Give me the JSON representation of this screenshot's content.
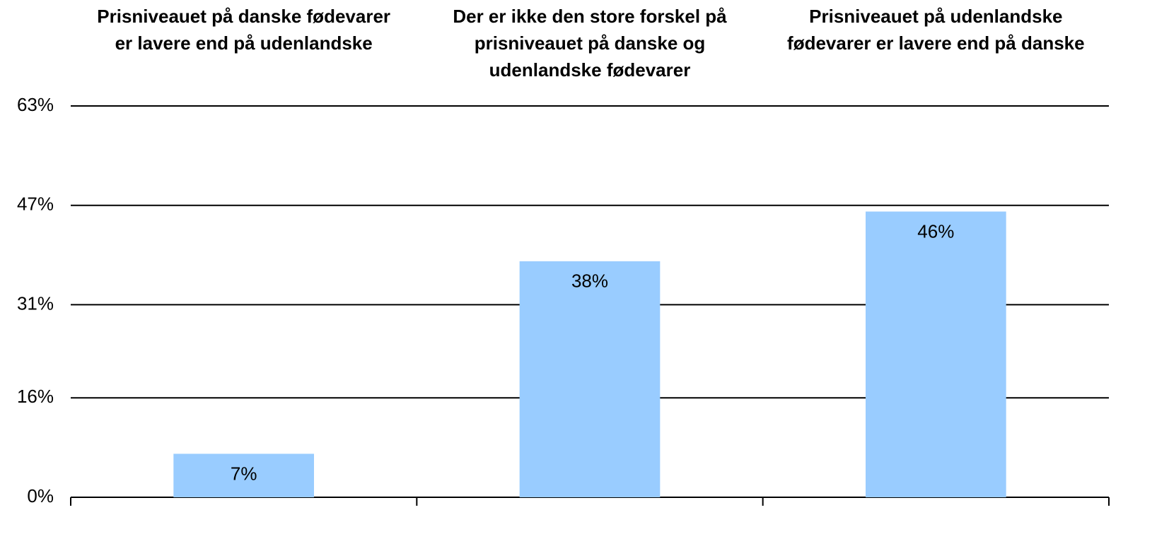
{
  "chart_data": {
    "type": "bar",
    "categories": [
      "Prisniveauet på danske fødevarer er lavere end på udenlandske",
      "Der er ikke den store forskel på prisniveauet på danske og udenlandske fødevarer",
      "Prisniveauet på udenlandske fødevarer er lavere end på danske"
    ],
    "values": [
      7,
      38,
      46
    ],
    "value_labels": [
      "7%",
      "38%",
      "46%"
    ],
    "color": "#99ccff",
    "ylim": [
      0,
      63
    ],
    "yticks": [
      {
        "value": 0,
        "label": "0%"
      },
      {
        "value": 16,
        "label": "16%"
      },
      {
        "value": 31,
        "label": "31%"
      },
      {
        "value": 47,
        "label": "47%"
      },
      {
        "value": 63,
        "label": "63%"
      }
    ],
    "grid": true
  }
}
